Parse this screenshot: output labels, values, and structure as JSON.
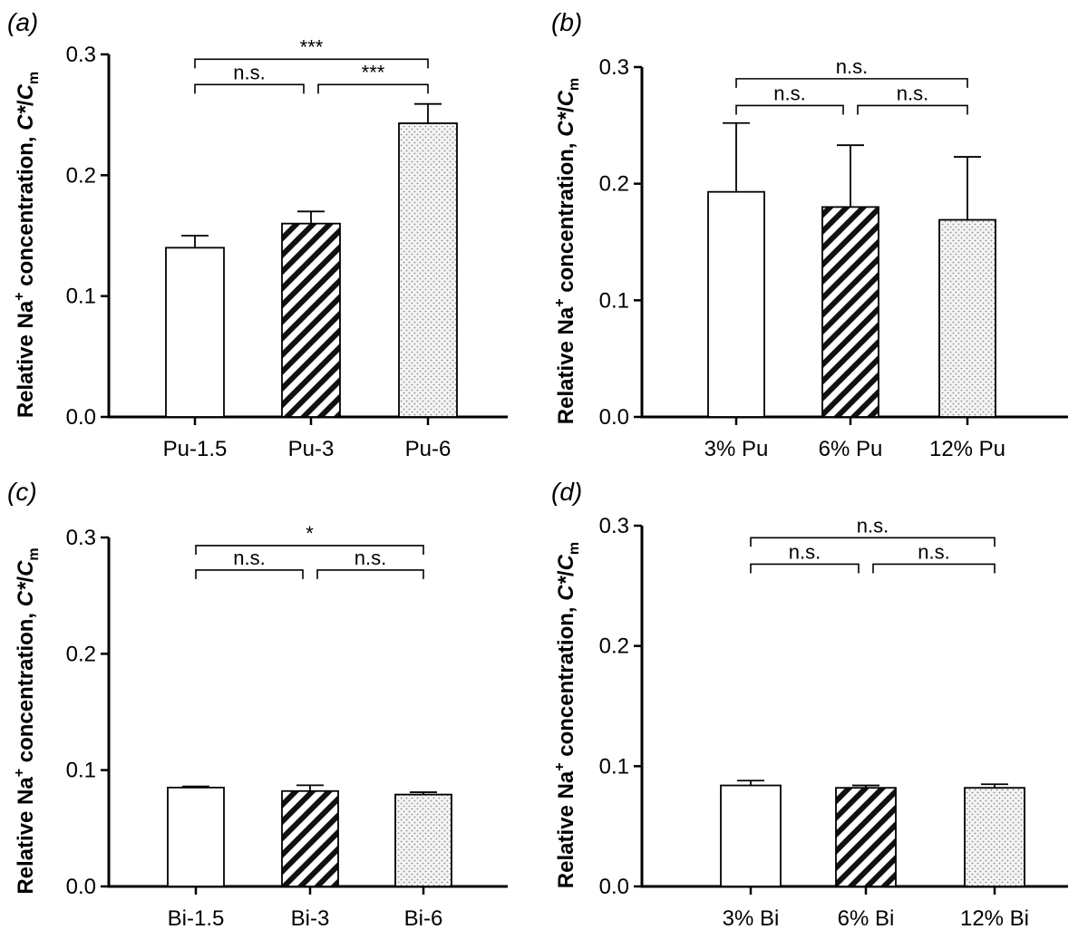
{
  "colors": {
    "axis": "#000000",
    "bar_outline": "#000000",
    "stipple": "#9a9a9a",
    "background": "#ffffff"
  },
  "chart_data": [
    {
      "panel": "(a)",
      "type": "bar",
      "categories": [
        "Pu-1.5",
        "Pu-3",
        "Pu-6"
      ],
      "values": [
        0.14,
        0.16,
        0.243
      ],
      "errors": [
        0.01,
        0.01,
        0.016
      ],
      "fills": [
        "open",
        "hatch",
        "dots"
      ],
      "ylabel": "Relative Na+ concentration, C*/Cm",
      "ylim": [
        0,
        0.3
      ],
      "yticks": [
        0.0,
        0.1,
        0.2,
        0.3
      ],
      "ytick_labels": [
        "0.0",
        "0.1",
        "0.2",
        "0.3"
      ],
      "significance": [
        {
          "from": 0,
          "to": 1,
          "label": "n.s.",
          "level": 0.275
        },
        {
          "from": 1,
          "to": 2,
          "label": "***",
          "level": 0.275
        },
        {
          "from": 0,
          "to": 2,
          "label": "***",
          "level": 0.296
        }
      ]
    },
    {
      "panel": "(b)",
      "type": "bar",
      "categories": [
        "3% Pu",
        "6% Pu",
        "12% Pu"
      ],
      "values": [
        0.193,
        0.18,
        0.169
      ],
      "errors": [
        0.059,
        0.053,
        0.054
      ],
      "fills": [
        "open",
        "hatch",
        "dots"
      ],
      "ylabel": "Relative Na+ concentration, C*/Cm",
      "ylim": [
        0,
        0.3
      ],
      "yticks": [
        0.0,
        0.1,
        0.2,
        0.3
      ],
      "ytick_labels": [
        "0.0",
        "0.1",
        "0.2",
        "0.3"
      ],
      "significance": [
        {
          "from": 0,
          "to": 1,
          "label": "n.s.",
          "level": 0.267
        },
        {
          "from": 1,
          "to": 2,
          "label": "n.s.",
          "level": 0.267
        },
        {
          "from": 0,
          "to": 2,
          "label": "n.s.",
          "level": 0.29
        }
      ]
    },
    {
      "panel": "(c)",
      "type": "bar",
      "categories": [
        "Bi-1.5",
        "Bi-3",
        "Bi-6"
      ],
      "values": [
        0.085,
        0.082,
        0.079
      ],
      "errors": [
        0.001,
        0.005,
        0.002
      ],
      "fills": [
        "open",
        "hatch",
        "dots"
      ],
      "ylabel": "Relative Na+ concentration, C*/Cm",
      "ylim": [
        0,
        0.3
      ],
      "yticks": [
        0.0,
        0.1,
        0.2,
        0.3
      ],
      "ytick_labels": [
        "0.0",
        "0.1",
        "0.2",
        "0.3"
      ],
      "significance": [
        {
          "from": 0,
          "to": 1,
          "label": "n.s.",
          "level": 0.272
        },
        {
          "from": 1,
          "to": 2,
          "label": "n.s.",
          "level": 0.272
        },
        {
          "from": 0,
          "to": 2,
          "label": "*",
          "level": 0.293
        }
      ]
    },
    {
      "panel": "(d)",
      "type": "bar",
      "categories": [
        "3% Bi",
        "6% Bi",
        "12% Bi"
      ],
      "values": [
        0.084,
        0.082,
        0.082
      ],
      "errors": [
        0.004,
        0.002,
        0.003
      ],
      "fills": [
        "open",
        "hatch",
        "dots"
      ],
      "ylabel": "Relative Na+ concentration, C*/Cm",
      "ylim": [
        0,
        0.3
      ],
      "yticks": [
        0.0,
        0.1,
        0.2,
        0.3
      ],
      "ytick_labels": [
        "0.0",
        "0.1",
        "0.2",
        "0.3"
      ],
      "significance": [
        {
          "from": 0,
          "to": 1,
          "label": "n.s.",
          "level": 0.268
        },
        {
          "from": 1,
          "to": 2,
          "label": "n.s.",
          "level": 0.268
        },
        {
          "from": 0,
          "to": 2,
          "label": "n.s.",
          "level": 0.29
        }
      ]
    }
  ]
}
